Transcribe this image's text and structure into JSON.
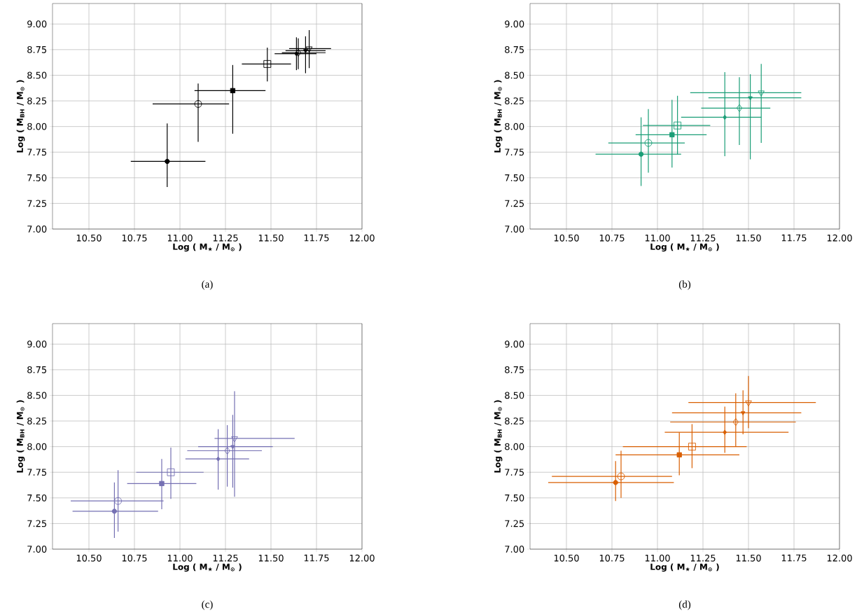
{
  "chart_data": [
    {
      "type": "scatter",
      "xlabel": "Log ( M$_{★}$ / M$_{⊙}$ )",
      "ylabel": "Log ( M$_{BH}$ / M$_{⊙}$ )",
      "annotations": [
        "(a)"
      ],
      "grid": true,
      "xlim": [
        10.3,
        12.0
      ],
      "ylim": [
        7.0,
        9.2
      ],
      "xticks": [
        {
          "value": 10.5,
          "label": "10.50"
        },
        {
          "value": 10.75,
          "label": "10.75"
        },
        {
          "value": 11.0,
          "label": "11.00"
        },
        {
          "value": 11.25,
          "label": "11.25"
        },
        {
          "value": 11.5,
          "label": "11.50"
        },
        {
          "value": 11.75,
          "label": "11.75"
        },
        {
          "value": 12.0,
          "label": "12.00"
        }
      ],
      "yticks": [
        {
          "value": 7.0,
          "label": "7.00"
        },
        {
          "value": 7.25,
          "label": "7.25"
        },
        {
          "value": 7.5,
          "label": "7.50"
        },
        {
          "value": 7.75,
          "label": "7.75"
        },
        {
          "value": 8.0,
          "label": "8.00"
        },
        {
          "value": 8.25,
          "label": "8.25"
        },
        {
          "value": 8.5,
          "label": "8.50"
        },
        {
          "value": 8.75,
          "label": "8.75"
        },
        {
          "value": 9.0,
          "label": "9.00"
        }
      ],
      "series": [
        {
          "color": "#000000",
          "marker": "circle",
          "x": [
            10.93
          ],
          "values": [
            7.66
          ],
          "xerrors": [
            [
              10.73,
              11.14
            ]
          ],
          "errors": [
            [
              7.41,
              8.03
            ]
          ]
        },
        {
          "color": "#000000",
          "marker": "circle",
          "x": [
            11.1
          ],
          "values": [
            8.22
          ],
          "xerrors": [
            [
              10.85,
              11.27
            ]
          ],
          "errors": [
            [
              7.85,
              8.42
            ]
          ]
        },
        {
          "color": "#000000",
          "marker": "square",
          "x": [
            11.29
          ],
          "values": [
            8.35
          ],
          "xerrors": [
            [
              11.08,
              11.47
            ]
          ],
          "errors": [
            [
              7.93,
              8.6
            ]
          ]
        },
        {
          "color": "#000000",
          "marker": "square",
          "x": [
            11.48
          ],
          "values": [
            8.61
          ],
          "xerrors": [
            [
              11.34,
              11.61
            ]
          ],
          "errors": [
            [
              8.44,
              8.77
            ]
          ]
        },
        {
          "color": "#000000",
          "marker": "diamond",
          "x": [
            11.64
          ],
          "values": [
            8.71
          ],
          "xerrors": [
            [
              11.52,
              11.75
            ]
          ],
          "errors": [
            [
              8.55,
              8.87
            ]
          ]
        },
        {
          "color": "#000000",
          "marker": "diamond",
          "x": [
            11.65
          ],
          "values": [
            8.72
          ],
          "xerrors": [
            [
              11.56,
              11.8
            ]
          ],
          "errors": [
            [
              8.56,
              8.86
            ]
          ]
        },
        {
          "color": "#000000",
          "marker": "triangle",
          "x": [
            11.69
          ],
          "values": [
            8.74
          ],
          "xerrors": [
            [
              11.58,
              11.8
            ]
          ],
          "errors": [
            [
              8.52,
              8.88
            ]
          ]
        },
        {
          "color": "#000000",
          "marker": "triangle",
          "x": [
            11.71
          ],
          "values": [
            8.76
          ],
          "xerrors": [
            [
              11.6,
              11.83
            ]
          ],
          "errors": [
            [
              8.57,
              8.94
            ]
          ]
        }
      ]
    },
    {
      "type": "scatter",
      "xlabel": "Log ( M$_{★}$ / M$_{⊙}$ )",
      "ylabel": "Log ( M$_{BH}$ / M$_{⊙}$ )",
      "annotations": [
        "(b)"
      ],
      "grid": true,
      "xlim": [
        10.3,
        12.0
      ],
      "ylim": [
        7.0,
        9.2
      ],
      "xticks": [
        {
          "value": 10.5,
          "label": "10.50"
        },
        {
          "value": 10.75,
          "label": "10.75"
        },
        {
          "value": 11.0,
          "label": "11.00"
        },
        {
          "value": 11.25,
          "label": "11.25"
        },
        {
          "value": 11.5,
          "label": "11.50"
        },
        {
          "value": 11.75,
          "label": "11.75"
        },
        {
          "value": 12.0,
          "label": "12.00"
        }
      ],
      "yticks": [
        {
          "value": 7.0,
          "label": "7.00"
        },
        {
          "value": 7.25,
          "label": "7.25"
        },
        {
          "value": 7.5,
          "label": "7.50"
        },
        {
          "value": 7.75,
          "label": "7.75"
        },
        {
          "value": 8.0,
          "label": "8.00"
        },
        {
          "value": 8.25,
          "label": "8.25"
        },
        {
          "value": 8.5,
          "label": "8.50"
        },
        {
          "value": 8.75,
          "label": "8.75"
        },
        {
          "value": 9.0,
          "label": "9.00"
        }
      ],
      "series": [
        {
          "color": "#1b9e77",
          "marker": "circle",
          "x": [
            10.91
          ],
          "values": [
            7.73
          ],
          "xerrors": [
            [
              10.66,
              11.13
            ]
          ],
          "errors": [
            [
              7.42,
              8.09
            ]
          ]
        },
        {
          "color": "#1b9e77",
          "marker": "circle",
          "x": [
            10.95
          ],
          "values": [
            7.84
          ],
          "xerrors": [
            [
              10.73,
              11.15
            ]
          ],
          "errors": [
            [
              7.55,
              8.17
            ]
          ]
        },
        {
          "color": "#1b9e77",
          "marker": "square",
          "x": [
            11.08
          ],
          "values": [
            7.92
          ],
          "xerrors": [
            [
              10.88,
              11.27
            ]
          ],
          "errors": [
            [
              7.6,
              8.26
            ]
          ]
        },
        {
          "color": "#1b9e77",
          "marker": "square",
          "x": [
            11.11
          ],
          "values": [
            8.01
          ],
          "xerrors": [
            [
              10.92,
              11.29
            ]
          ],
          "errors": [
            [
              7.73,
              8.3
            ]
          ]
        },
        {
          "color": "#1b9e77",
          "marker": "diamond",
          "x": [
            11.37
          ],
          "values": [
            8.09
          ],
          "xerrors": [
            [
              11.13,
              11.57
            ]
          ],
          "errors": [
            [
              7.71,
              8.53
            ]
          ]
        },
        {
          "color": "#1b9e77",
          "marker": "diamond",
          "x": [
            11.45
          ],
          "values": [
            8.18
          ],
          "xerrors": [
            [
              11.24,
              11.62
            ]
          ],
          "errors": [
            [
              7.82,
              8.48
            ]
          ]
        },
        {
          "color": "#1b9e77",
          "marker": "triangle",
          "x": [
            11.51
          ],
          "values": [
            8.28
          ],
          "xerrors": [
            [
              11.28,
              11.79
            ]
          ],
          "errors": [
            [
              7.68,
              8.51
            ]
          ]
        },
        {
          "color": "#1b9e77",
          "marker": "triangle",
          "x": [
            11.57
          ],
          "values": [
            8.33
          ],
          "xerrors": [
            [
              11.18,
              11.79
            ]
          ],
          "errors": [
            [
              7.84,
              8.61
            ]
          ]
        }
      ]
    },
    {
      "type": "scatter",
      "xlabel": "Log ( M$_{★}$ / M$_{⊙}$ )",
      "ylabel": "Log ( M$_{BH}$ / M$_{⊙}$ )",
      "annotations": [
        "(c)"
      ],
      "grid": true,
      "xlim": [
        10.3,
        12.0
      ],
      "ylim": [
        7.0,
        9.2
      ],
      "xticks": [
        {
          "value": 10.5,
          "label": "10.50"
        },
        {
          "value": 10.75,
          "label": "10.75"
        },
        {
          "value": 11.0,
          "label": "11.00"
        },
        {
          "value": 11.25,
          "label": "11.25"
        },
        {
          "value": 11.5,
          "label": "11.50"
        },
        {
          "value": 11.75,
          "label": "11.75"
        },
        {
          "value": 12.0,
          "label": "12.00"
        }
      ],
      "yticks": [
        {
          "value": 7.0,
          "label": "7.00"
        },
        {
          "value": 7.25,
          "label": "7.25"
        },
        {
          "value": 7.5,
          "label": "7.50"
        },
        {
          "value": 7.75,
          "label": "7.75"
        },
        {
          "value": 8.0,
          "label": "8.00"
        },
        {
          "value": 8.25,
          "label": "8.25"
        },
        {
          "value": 8.5,
          "label": "8.50"
        },
        {
          "value": 8.75,
          "label": "8.75"
        },
        {
          "value": 9.0,
          "label": "9.00"
        }
      ],
      "series": [
        {
          "color": "#7570b3",
          "marker": "circle",
          "x": [
            10.64
          ],
          "values": [
            7.37
          ],
          "xerrors": [
            [
              10.41,
              10.88
            ]
          ],
          "errors": [
            [
              7.11,
              7.65
            ]
          ]
        },
        {
          "color": "#7570b3",
          "marker": "circle",
          "x": [
            10.66
          ],
          "values": [
            7.47
          ],
          "xerrors": [
            [
              10.4,
              10.91
            ]
          ],
          "errors": [
            [
              7.17,
              7.77
            ]
          ]
        },
        {
          "color": "#7570b3",
          "marker": "square",
          "x": [
            10.9
          ],
          "values": [
            7.64
          ],
          "xerrors": [
            [
              10.71,
              11.09
            ]
          ],
          "errors": [
            [
              7.39,
              7.88
            ]
          ]
        },
        {
          "color": "#7570b3",
          "marker": "square",
          "x": [
            10.95
          ],
          "values": [
            7.75
          ],
          "xerrors": [
            [
              10.76,
              11.13
            ]
          ],
          "errors": [
            [
              7.49,
              7.99
            ]
          ]
        },
        {
          "color": "#7570b3",
          "marker": "diamond",
          "x": [
            11.21
          ],
          "values": [
            7.88
          ],
          "xerrors": [
            [
              11.03,
              11.38
            ]
          ],
          "errors": [
            [
              7.58,
              8.17
            ]
          ]
        },
        {
          "color": "#7570b3",
          "marker": "diamond",
          "x": [
            11.26
          ],
          "values": [
            7.96
          ],
          "xerrors": [
            [
              11.04,
              11.45
            ]
          ],
          "errors": [
            [
              7.61,
              8.21
            ]
          ]
        },
        {
          "color": "#7570b3",
          "marker": "triangle",
          "x": [
            11.29
          ],
          "values": [
            8.0
          ],
          "xerrors": [
            [
              11.1,
              11.51
            ]
          ],
          "errors": [
            [
              7.6,
              8.31
            ]
          ]
        },
        {
          "color": "#7570b3",
          "marker": "triangle",
          "x": [
            11.3
          ],
          "values": [
            8.08
          ],
          "xerrors": [
            [
              11.19,
              11.63
            ]
          ],
          "errors": [
            [
              7.51,
              8.54
            ]
          ]
        }
      ]
    },
    {
      "type": "scatter",
      "xlabel": "Log ( M$_{★}$ / M$_{⊙}$ )",
      "ylabel": "Log ( M$_{BH}$ / M$_{⊙}$ )",
      "annotations": [
        "(d)"
      ],
      "grid": true,
      "xlim": [
        10.3,
        12.0
      ],
      "ylim": [
        7.0,
        9.2
      ],
      "xticks": [
        {
          "value": 10.5,
          "label": "10.50"
        },
        {
          "value": 10.75,
          "label": "10.75"
        },
        {
          "value": 11.0,
          "label": "11.00"
        },
        {
          "value": 11.25,
          "label": "11.25"
        },
        {
          "value": 11.5,
          "label": "11.50"
        },
        {
          "value": 11.75,
          "label": "11.75"
        },
        {
          "value": 12.0,
          "label": "12.00"
        }
      ],
      "yticks": [
        {
          "value": 7.0,
          "label": "7.00"
        },
        {
          "value": 7.25,
          "label": "7.25"
        },
        {
          "value": 7.5,
          "label": "7.50"
        },
        {
          "value": 7.75,
          "label": "7.75"
        },
        {
          "value": 8.0,
          "label": "8.00"
        },
        {
          "value": 8.25,
          "label": "8.25"
        },
        {
          "value": 8.5,
          "label": "8.50"
        },
        {
          "value": 8.75,
          "label": "8.75"
        },
        {
          "value": 9.0,
          "label": "9.00"
        }
      ],
      "series": [
        {
          "color": "#d95f02",
          "marker": "circle",
          "x": [
            10.77
          ],
          "values": [
            7.65
          ],
          "xerrors": [
            [
              10.4,
              11.09
            ]
          ],
          "errors": [
            [
              7.47,
              7.86
            ]
          ]
        },
        {
          "color": "#d95f02",
          "marker": "circle",
          "x": [
            10.8
          ],
          "values": [
            7.71
          ],
          "xerrors": [
            [
              10.42,
              11.08
            ]
          ],
          "errors": [
            [
              7.5,
              7.96
            ]
          ]
        },
        {
          "color": "#d95f02",
          "marker": "square",
          "x": [
            11.12
          ],
          "values": [
            7.92
          ],
          "xerrors": [
            [
              10.77,
              11.45
            ]
          ],
          "errors": [
            [
              7.72,
              8.14
            ]
          ]
        },
        {
          "color": "#d95f02",
          "marker": "square",
          "x": [
            11.19
          ],
          "values": [
            8.0
          ],
          "xerrors": [
            [
              10.81,
              11.49
            ]
          ],
          "errors": [
            [
              7.79,
              8.22
            ]
          ]
        },
        {
          "color": "#d95f02",
          "marker": "diamond",
          "x": [
            11.37
          ],
          "values": [
            8.14
          ],
          "xerrors": [
            [
              11.04,
              11.72
            ]
          ],
          "errors": [
            [
              7.94,
              8.39
            ]
          ]
        },
        {
          "color": "#d95f02",
          "marker": "diamond",
          "x": [
            11.43
          ],
          "values": [
            8.24
          ],
          "xerrors": [
            [
              11.07,
              11.76
            ]
          ],
          "errors": [
            [
              8.0,
              8.52
            ]
          ]
        },
        {
          "color": "#d95f02",
          "marker": "triangle",
          "x": [
            11.47
          ],
          "values": [
            8.33
          ],
          "xerrors": [
            [
              11.08,
              11.79
            ]
          ],
          "errors": [
            [
              8.12,
              8.55
            ]
          ]
        },
        {
          "color": "#d95f02",
          "marker": "triangle",
          "x": [
            11.5
          ],
          "values": [
            8.43
          ],
          "xerrors": [
            [
              11.17,
              11.87
            ]
          ],
          "errors": [
            [
              8.18,
              8.69
            ]
          ]
        }
      ]
    }
  ]
}
